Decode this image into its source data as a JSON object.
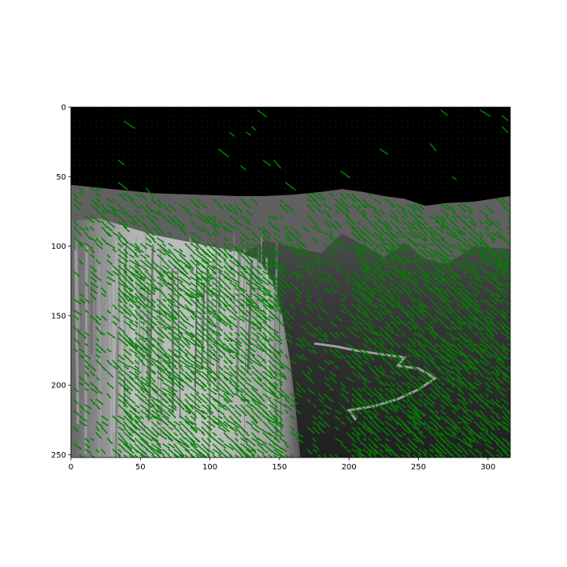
{
  "chart_data": {
    "type": "image_with_vector_field",
    "title": "",
    "xlabel": "",
    "ylabel": "",
    "xlim": [
      0,
      316
    ],
    "ylim": [
      252,
      0
    ],
    "y_axis_inverted": true,
    "x_ticks": [
      0,
      50,
      100,
      150,
      200,
      250,
      300
    ],
    "y_ticks": [
      0,
      50,
      100,
      150,
      200,
      250
    ],
    "x_tick_labels": [
      "0",
      "50",
      "100",
      "150",
      "200",
      "250",
      "300"
    ],
    "y_tick_labels": [
      "0",
      "50",
      "100",
      "150",
      "200",
      "250"
    ],
    "grid": false,
    "legend": "none",
    "background_image": "grayscale landscape photo: black sky above a horizon near y=60, bright granite cliff face spanning x 0–150, darker forested valley to the right",
    "horizon_profile": [
      [
        0,
        56
      ],
      [
        20,
        58
      ],
      [
        40,
        60
      ],
      [
        60,
        62
      ],
      [
        90,
        63
      ],
      [
        120,
        64
      ],
      [
        140,
        64
      ],
      [
        160,
        63
      ],
      [
        180,
        61
      ],
      [
        195,
        59
      ],
      [
        210,
        61
      ],
      [
        225,
        64
      ],
      [
        240,
        66
      ],
      [
        255,
        71
      ],
      [
        270,
        69
      ],
      [
        290,
        68
      ],
      [
        316,
        64
      ]
    ],
    "quiver": {
      "color": "#008000",
      "grid_step": 4,
      "dominant_direction": "down-right",
      "regions": [
        {
          "name": "sky",
          "x": [
            0,
            316
          ],
          "y": [
            0,
            58
          ],
          "magnitude": "near zero"
        },
        {
          "name": "cliff",
          "x": [
            30,
            150
          ],
          "y": [
            95,
            250
          ],
          "magnitude": "strong"
        },
        {
          "name": "right-slope",
          "x": [
            200,
            316
          ],
          "y": [
            80,
            250
          ],
          "magnitude": "strong"
        },
        {
          "name": "ridge",
          "x": [
            0,
            316
          ],
          "y": [
            58,
            100
          ],
          "magnitude": "medium"
        }
      ]
    },
    "colors": {
      "arrows": "#008000",
      "sky": "#000000",
      "axes": "#000000"
    }
  }
}
